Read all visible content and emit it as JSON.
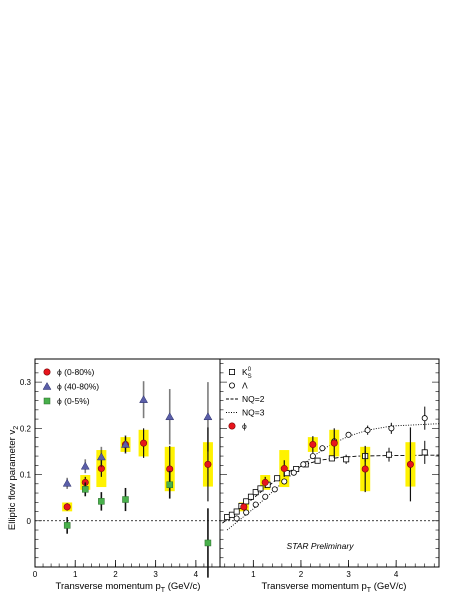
{
  "chart_data": [
    {
      "type": "scatter",
      "xlabel": "Transverse momentum p_T (GeV/c)",
      "ylabel": "Elliptic flow parameter v_2",
      "xlim": [
        0,
        4.6
      ],
      "ylim": [
        -0.1,
        0.35
      ],
      "xticks": [
        "0",
        "1",
        "2",
        "3",
        "4"
      ],
      "yticks": [
        "0",
        "0.1",
        "0.2",
        "0.3"
      ],
      "legend": "top-left",
      "reference_line_y": 0,
      "series": [
        {
          "name": "ϕ (0-80%)",
          "marker": "circle",
          "color": "#e8141c",
          "points": [
            {
              "x": 0.8,
              "y": 0.03,
              "err": 0.008,
              "sys": 0.006
            },
            {
              "x": 1.25,
              "y": 0.083,
              "err": 0.012,
              "sys": 0.01
            },
            {
              "x": 1.65,
              "y": 0.113,
              "err": 0.018,
              "sys": 0.025
            },
            {
              "x": 2.25,
              "y": 0.165,
              "err": 0.018,
              "sys": 0.01
            },
            {
              "x": 2.7,
              "y": 0.168,
              "err": 0.032,
              "sys": 0.018
            },
            {
              "x": 3.35,
              "y": 0.112,
              "err": 0.05,
              "sys": 0.03
            },
            {
              "x": 4.3,
              "y": 0.122,
              "err": 0.08,
              "sys": 0.03
            }
          ]
        },
        {
          "name": "ϕ (40-80%)",
          "marker": "triangle",
          "color": "#5a5ea8",
          "points": [
            {
              "x": 0.8,
              "y": 0.081,
              "err": 0.012
            },
            {
              "x": 1.25,
              "y": 0.118,
              "err": 0.015
            },
            {
              "x": 1.65,
              "y": 0.138,
              "err": 0.022
            },
            {
              "x": 2.25,
              "y": 0.165,
              "err": 0.02
            },
            {
              "x": 2.7,
              "y": 0.262,
              "err": 0.04
            },
            {
              "x": 3.35,
              "y": 0.225,
              "err": 0.06
            },
            {
              "x": 4.3,
              "y": 0.225,
              "err": 0.075
            }
          ]
        },
        {
          "name": "ϕ (0-5%)",
          "marker": "square",
          "color": "#48b04b",
          "points": [
            {
              "x": 0.8,
              "y": -0.01,
              "err": 0.018
            },
            {
              "x": 1.25,
              "y": 0.068,
              "err": 0.015
            },
            {
              "x": 1.65,
              "y": 0.042,
              "err": 0.02
            },
            {
              "x": 2.25,
              "y": 0.046,
              "err": 0.025
            },
            {
              "x": 3.35,
              "y": 0.078,
              "err": 0.03
            },
            {
              "x": 4.3,
              "y": -0.048,
              "err": 0.075
            }
          ]
        }
      ]
    },
    {
      "type": "scatter",
      "xlabel": "Transverse momentum p_T (GeV/c)",
      "xlim": [
        0.3,
        4.9
      ],
      "ylim": [
        -0.1,
        0.35
      ],
      "xticks": [
        "1",
        "2",
        "3",
        "4"
      ],
      "legend": "top-left",
      "annotation": "STAR Preliminary",
      "reference_line_y": 0,
      "series": [
        {
          "name": "K_S^0",
          "marker": "open-square",
          "color": "#000000",
          "points": [
            {
              "x": 0.45,
              "y": 0.008
            },
            {
              "x": 0.55,
              "y": 0.013
            },
            {
              "x": 0.65,
              "y": 0.02
            },
            {
              "x": 0.75,
              "y": 0.032
            },
            {
              "x": 0.85,
              "y": 0.042
            },
            {
              "x": 0.95,
              "y": 0.052
            },
            {
              "x": 1.05,
              "y": 0.062
            },
            {
              "x": 1.15,
              "y": 0.07
            },
            {
              "x": 1.3,
              "y": 0.078
            },
            {
              "x": 1.5,
              "y": 0.092
            },
            {
              "x": 1.7,
              "y": 0.103
            },
            {
              "x": 1.9,
              "y": 0.112
            },
            {
              "x": 2.1,
              "y": 0.122
            },
            {
              "x": 2.35,
              "y": 0.13
            },
            {
              "x": 2.65,
              "y": 0.135
            },
            {
              "x": 2.95,
              "y": 0.133,
              "err": 0.01
            },
            {
              "x": 3.35,
              "y": 0.14,
              "err": 0.012
            },
            {
              "x": 3.85,
              "y": 0.143,
              "err": 0.015
            },
            {
              "x": 4.6,
              "y": 0.148,
              "err": 0.025
            }
          ]
        },
        {
          "name": "Λ",
          "marker": "open-circle",
          "color": "#000000",
          "points": [
            {
              "x": 0.65,
              "y": 0.005
            },
            {
              "x": 0.85,
              "y": 0.018
            },
            {
              "x": 1.05,
              "y": 0.035
            },
            {
              "x": 1.25,
              "y": 0.052
            },
            {
              "x": 1.45,
              "y": 0.068
            },
            {
              "x": 1.65,
              "y": 0.085
            },
            {
              "x": 1.85,
              "y": 0.104
            },
            {
              "x": 2.05,
              "y": 0.122
            },
            {
              "x": 2.25,
              "y": 0.14
            },
            {
              "x": 2.45,
              "y": 0.157
            },
            {
              "x": 2.7,
              "y": 0.172
            },
            {
              "x": 3.0,
              "y": 0.186
            },
            {
              "x": 3.4,
              "y": 0.196,
              "err": 0.01
            },
            {
              "x": 3.9,
              "y": 0.2,
              "err": 0.012
            },
            {
              "x": 4.6,
              "y": 0.222,
              "err": 0.025
            }
          ]
        },
        {
          "name": "NQ=2",
          "line": "dashed",
          "color": "#000000",
          "x": [
            0.35,
            0.6,
            0.9,
            1.2,
            1.5,
            1.8,
            2.1,
            2.4,
            2.8,
            3.2,
            3.8,
            4.9
          ],
          "y": [
            -0.005,
            0.015,
            0.04,
            0.066,
            0.09,
            0.109,
            0.122,
            0.131,
            0.137,
            0.14,
            0.141,
            0.142
          ]
        },
        {
          "name": "NQ=3",
          "line": "dotted",
          "color": "#000000",
          "x": [
            0.45,
            0.75,
            1.05,
            1.35,
            1.65,
            1.95,
            2.25,
            2.6,
            3.0,
            3.4,
            3.9,
            4.9
          ],
          "y": [
            -0.02,
            0.005,
            0.03,
            0.058,
            0.086,
            0.113,
            0.139,
            0.163,
            0.183,
            0.196,
            0.205,
            0.21
          ]
        },
        {
          "name": "ϕ",
          "marker": "circle",
          "color": "#e8141c",
          "points": [
            {
              "x": 0.8,
              "y": 0.03,
              "err": 0.008,
              "sys": 0.006
            },
            {
              "x": 1.25,
              "y": 0.083,
              "err": 0.012,
              "sys": 0.01
            },
            {
              "x": 1.65,
              "y": 0.113,
              "err": 0.018,
              "sys": 0.025
            },
            {
              "x": 2.25,
              "y": 0.165,
              "err": 0.018,
              "sys": 0.01
            },
            {
              "x": 2.7,
              "y": 0.168,
              "err": 0.032,
              "sys": 0.018
            },
            {
              "x": 3.35,
              "y": 0.112,
              "err": 0.05,
              "sys": 0.03
            },
            {
              "x": 4.3,
              "y": 0.122,
              "err": 0.08,
              "sys": 0.03
            }
          ]
        }
      ]
    }
  ],
  "colors": {
    "systematic_band": "#fff200",
    "frame": "#000000"
  }
}
